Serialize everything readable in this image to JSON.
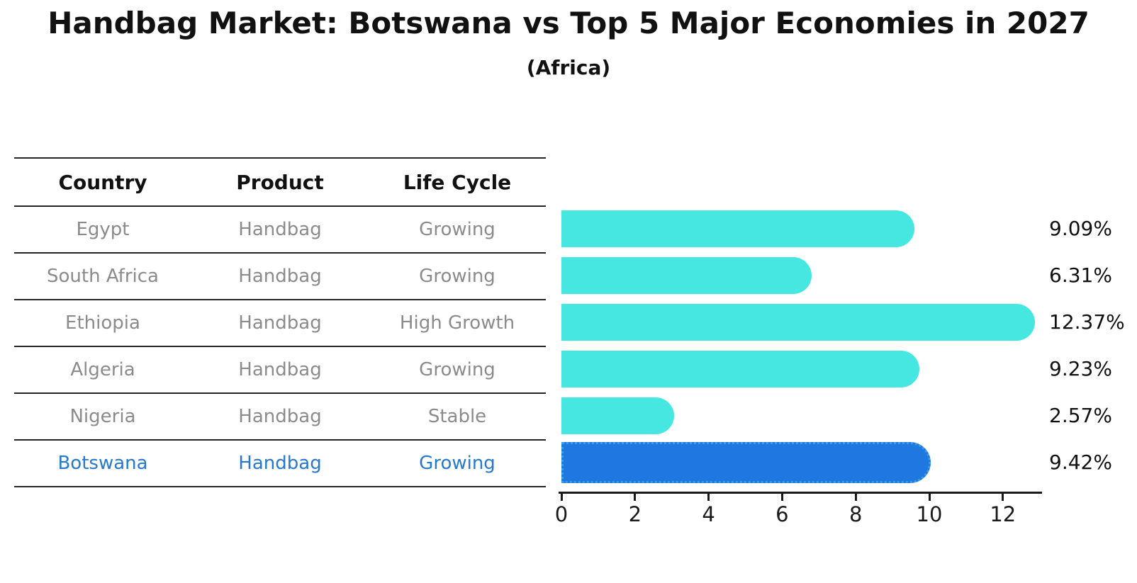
{
  "title": "Handbag Market: Botswana vs Top 5 Major Economies in 2027",
  "subtitle": "(Africa)",
  "table": {
    "headers": [
      "Country",
      "Product",
      "Life Cycle"
    ],
    "rows": [
      {
        "country": "Egypt",
        "product": "Handbag",
        "life_cycle": "Growing",
        "highlighted": false
      },
      {
        "country": "South Africa",
        "product": "Handbag",
        "life_cycle": "Growing",
        "highlighted": false
      },
      {
        "country": "Ethiopia",
        "product": "Handbag",
        "life_cycle": "High Growth",
        "highlighted": false
      },
      {
        "country": "Algeria",
        "product": "Handbag",
        "life_cycle": "Growing",
        "highlighted": false
      },
      {
        "country": "Nigeria",
        "product": "Handbag",
        "life_cycle": "Stable",
        "highlighted": false
      },
      {
        "country": "Botswana",
        "product": "Handbag",
        "life_cycle": "Growing",
        "highlighted": true
      }
    ]
  },
  "chart_data": {
    "type": "bar",
    "orientation": "horizontal",
    "title": "Handbag Market: Botswana vs Top 5 Major Economies in 2027",
    "subtitle": "(Africa)",
    "categories": [
      "Egypt",
      "South Africa",
      "Ethiopia",
      "Algeria",
      "Nigeria",
      "Botswana"
    ],
    "values": [
      9.09,
      6.31,
      12.37,
      9.23,
      2.57,
      9.42
    ],
    "value_labels": [
      "9.09%",
      "6.31%",
      "12.37%",
      "9.23%",
      "2.57%",
      "9.42%"
    ],
    "highlight_index": 5,
    "x_ticks": [
      0,
      2,
      4,
      6,
      8,
      10,
      12
    ],
    "xlim": [
      0,
      13.1
    ],
    "grid": false,
    "legend": "none",
    "bar_color": "#45e7e0",
    "highlight_bar_color": "#1f78e0",
    "highlight_border_color": "#3c9be6",
    "highlight_text_color": "#2679ce",
    "row_text_color": "#8b8b8b",
    "axis_color": "#1a1a1a"
  }
}
